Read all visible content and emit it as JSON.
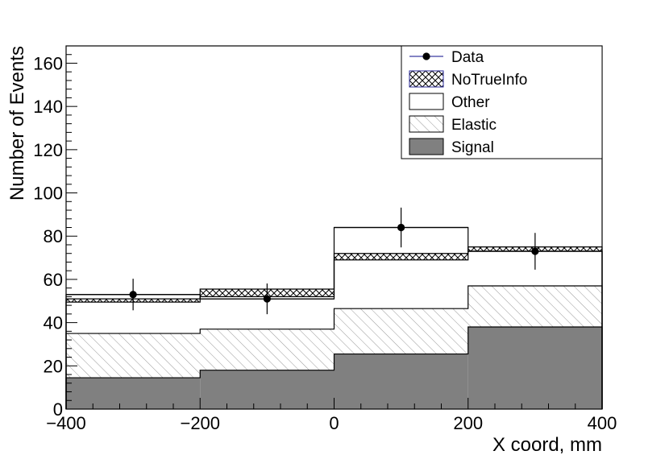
{
  "chart_data": {
    "type": "bar",
    "subtype": "stacked-histogram",
    "xlabel": "X coord, mm",
    "ylabel": "Number of Events",
    "xlim": [
      -400,
      400
    ],
    "ylim": [
      0,
      168
    ],
    "bin_edges": [
      -400,
      -200,
      0,
      200,
      400
    ],
    "x_ticks": [
      -400,
      -200,
      0,
      200,
      400
    ],
    "x_tick_labels": [
      "−400",
      "−200",
      "0",
      "200",
      "400"
    ],
    "y_ticks": [
      0,
      20,
      40,
      60,
      80,
      100,
      120,
      140,
      160
    ],
    "y_tick_labels": [
      "0",
      "20",
      "40",
      "60",
      "80",
      "100",
      "120",
      "140",
      "160"
    ],
    "legend_position": "top-right",
    "legend": [
      {
        "label": "Data",
        "style": "marker-line"
      },
      {
        "label": "NoTrueInfo",
        "style": "crosshatch"
      },
      {
        "label": "Other",
        "style": "open"
      },
      {
        "label": "Elastic",
        "style": "diagonal-hatch"
      },
      {
        "label": "Signal",
        "style": "solid-gray"
      }
    ],
    "series": [
      {
        "name": "Signal",
        "values": [
          14.5,
          18,
          25.5,
          38
        ],
        "color": "#808080"
      },
      {
        "name": "Elastic",
        "values": [
          20.5,
          19,
          21,
          19
        ],
        "color": "#ffffff"
      },
      {
        "name": "Other",
        "values": [
          14.5,
          15,
          22.5,
          16
        ],
        "color": "#ffffff"
      },
      {
        "name": "NoTrueInfo",
        "values": [
          1.5,
          3.5,
          3,
          2
        ],
        "color": "#ffffff"
      }
    ],
    "data_points": {
      "name": "Data",
      "x": [
        -300,
        -100,
        100,
        300
      ],
      "y": [
        53,
        51,
        84,
        73
      ],
      "x_err": [
        100,
        100,
        100,
        100
      ],
      "y_err": [
        7.3,
        7.1,
        9.2,
        8.5
      ]
    },
    "extra_outline": [
      53,
      51,
      84,
      73
    ]
  }
}
